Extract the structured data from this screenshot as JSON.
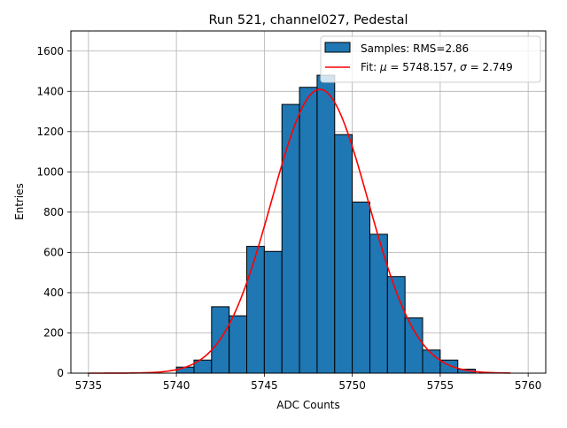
{
  "chart_data": {
    "type": "bar",
    "title": "Run 521, channel027, Pedestal",
    "xlabel": "ADC Counts",
    "ylabel": "Entries",
    "xlim": [
      5734,
      5761
    ],
    "ylim": [
      0,
      1700
    ],
    "xticks": [
      5735,
      5740,
      5745,
      5750,
      5755,
      5760
    ],
    "yticks": [
      0,
      200,
      400,
      600,
      800,
      1000,
      1200,
      1400,
      1600
    ],
    "grid": true,
    "legend_position": "top-right",
    "histogram": {
      "name": "Samples: RMS=2.86",
      "color": "#1f77b4",
      "bins": [
        {
          "start": 5740,
          "end": 5741,
          "value": 30
        },
        {
          "start": 5741,
          "end": 5742,
          "value": 65
        },
        {
          "start": 5742,
          "end": 5743,
          "value": 330
        },
        {
          "start": 5743,
          "end": 5744,
          "value": 285
        },
        {
          "start": 5744,
          "end": 5745,
          "value": 630
        },
        {
          "start": 5745,
          "end": 5746,
          "value": 605
        },
        {
          "start": 5746,
          "end": 5747,
          "value": 1335
        },
        {
          "start": 5747,
          "end": 5748,
          "value": 1420
        },
        {
          "start": 5748,
          "end": 5749,
          "value": 1480
        },
        {
          "start": 5749,
          "end": 5750,
          "value": 1185
        },
        {
          "start": 5750,
          "end": 5751,
          "value": 850
        },
        {
          "start": 5751,
          "end": 5752,
          "value": 690
        },
        {
          "start": 5752,
          "end": 5753,
          "value": 480
        },
        {
          "start": 5753,
          "end": 5754,
          "value": 275
        },
        {
          "start": 5754,
          "end": 5755,
          "value": 115
        },
        {
          "start": 5755,
          "end": 5756,
          "value": 65
        },
        {
          "start": 5756,
          "end": 5757,
          "value": 20
        }
      ]
    },
    "fit": {
      "name": "Fit: μ = 5748.157, σ = 2.749",
      "name_parts": [
        "Fit: ",
        "μ",
        " = 5748.157, ",
        "σ",
        " = 2.749"
      ],
      "color": "#ff0000",
      "mu": 5748.157,
      "sigma": 2.749,
      "amplitude": 1410,
      "x_range": [
        5735,
        5759
      ]
    }
  }
}
